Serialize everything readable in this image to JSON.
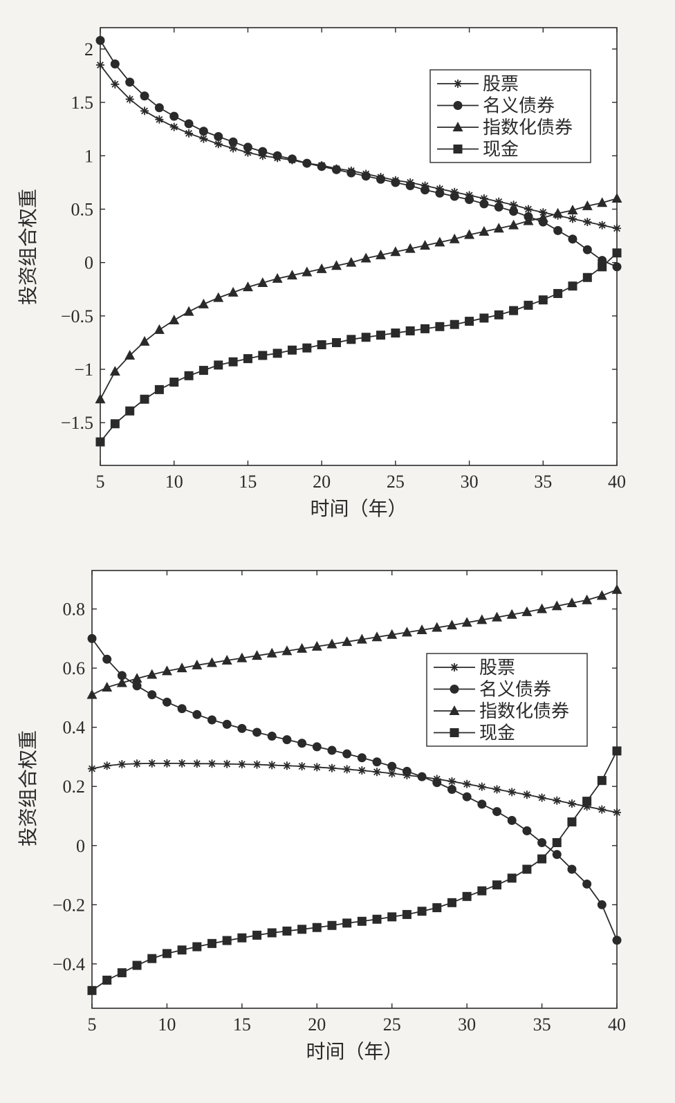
{
  "colors": {
    "ink": "#2a2a2a",
    "background": "#f4f3ef",
    "panel": "#ffffff"
  },
  "chart_data": [
    {
      "type": "line",
      "xlabel": "时间（年）",
      "ylabel": "投资组合权重",
      "xlim": [
        5,
        40
      ],
      "ylim": [
        -1.9,
        2.2
      ],
      "xticks": [
        5,
        10,
        15,
        20,
        25,
        30,
        35,
        40
      ],
      "xtick_labels": [
        "5",
        "10",
        "15",
        "20",
        "25",
        "30",
        "35",
        "40"
      ],
      "yticks": [
        -1.5,
        -1,
        -0.5,
        0,
        0.5,
        1,
        1.5,
        2
      ],
      "ytick_labels": [
        "−1.5",
        "−1",
        "−0.5",
        "0",
        "0.5",
        "1",
        "1.5",
        "2"
      ],
      "legend_position": "top-right",
      "x": [
        5,
        6,
        7,
        8,
        9,
        10,
        11,
        12,
        13,
        14,
        15,
        16,
        17,
        18,
        19,
        20,
        21,
        22,
        23,
        24,
        25,
        26,
        27,
        28,
        29,
        30,
        31,
        32,
        33,
        34,
        35,
        36,
        37,
        38,
        39,
        40
      ],
      "series": [
        {
          "name": "股票",
          "marker": "star",
          "values": [
            1.85,
            1.67,
            1.53,
            1.42,
            1.34,
            1.27,
            1.21,
            1.16,
            1.11,
            1.07,
            1.03,
            1.0,
            0.98,
            0.96,
            0.93,
            0.91,
            0.88,
            0.86,
            0.83,
            0.8,
            0.77,
            0.75,
            0.72,
            0.69,
            0.66,
            0.63,
            0.6,
            0.57,
            0.54,
            0.5,
            0.47,
            0.44,
            0.41,
            0.38,
            0.35,
            0.32
          ]
        },
        {
          "name": "名义债券",
          "marker": "circle",
          "values": [
            2.08,
            1.86,
            1.69,
            1.56,
            1.45,
            1.37,
            1.3,
            1.23,
            1.18,
            1.13,
            1.08,
            1.04,
            1.0,
            0.97,
            0.93,
            0.9,
            0.87,
            0.84,
            0.81,
            0.78,
            0.75,
            0.72,
            0.68,
            0.65,
            0.62,
            0.59,
            0.55,
            0.52,
            0.48,
            0.43,
            0.38,
            0.3,
            0.22,
            0.12,
            0.02,
            -0.04
          ]
        },
        {
          "name": "指数化债券",
          "marker": "triangle",
          "values": [
            -1.28,
            -1.02,
            -0.87,
            -0.74,
            -0.63,
            -0.54,
            -0.46,
            -0.39,
            -0.33,
            -0.28,
            -0.23,
            -0.19,
            -0.15,
            -0.12,
            -0.09,
            -0.06,
            -0.03,
            0.0,
            0.04,
            0.07,
            0.1,
            0.13,
            0.16,
            0.19,
            0.22,
            0.26,
            0.29,
            0.32,
            0.35,
            0.39,
            0.42,
            0.46,
            0.49,
            0.53,
            0.56,
            0.6
          ]
        },
        {
          "name": "现金",
          "marker": "square",
          "values": [
            -1.68,
            -1.51,
            -1.39,
            -1.28,
            -1.19,
            -1.12,
            -1.06,
            -1.01,
            -0.96,
            -0.93,
            -0.9,
            -0.87,
            -0.85,
            -0.82,
            -0.8,
            -0.77,
            -0.75,
            -0.72,
            -0.7,
            -0.68,
            -0.66,
            -0.64,
            -0.62,
            -0.6,
            -0.58,
            -0.55,
            -0.52,
            -0.49,
            -0.45,
            -0.4,
            -0.35,
            -0.29,
            -0.22,
            -0.14,
            -0.04,
            0.09
          ]
        }
      ]
    },
    {
      "type": "line",
      "xlabel": "时间（年）",
      "ylabel": "投资组合权重",
      "xlim": [
        5,
        40
      ],
      "ylim": [
        -0.55,
        0.93
      ],
      "xticks": [
        5,
        10,
        15,
        20,
        25,
        30,
        35,
        40
      ],
      "xtick_labels": [
        "5",
        "10",
        "15",
        "20",
        "25",
        "30",
        "35",
        "40"
      ],
      "yticks": [
        -0.4,
        -0.2,
        0,
        0.2,
        0.4,
        0.6,
        0.8
      ],
      "ytick_labels": [
        "−0.4",
        "−0.2",
        "0",
        "0.2",
        "0.4",
        "0.6",
        "0.8"
      ],
      "legend_position": "center-right",
      "x": [
        5,
        6,
        7,
        8,
        9,
        10,
        11,
        12,
        13,
        14,
        15,
        16,
        17,
        18,
        19,
        20,
        21,
        22,
        23,
        24,
        25,
        26,
        27,
        28,
        29,
        30,
        31,
        32,
        33,
        34,
        35,
        36,
        37,
        38,
        39,
        40
      ],
      "series": [
        {
          "name": "股票",
          "marker": "star",
          "values": [
            0.26,
            0.27,
            0.275,
            0.277,
            0.278,
            0.278,
            0.278,
            0.277,
            0.277,
            0.276,
            0.275,
            0.274,
            0.272,
            0.27,
            0.268,
            0.265,
            0.262,
            0.258,
            0.254,
            0.249,
            0.244,
            0.238,
            0.232,
            0.225,
            0.217,
            0.208,
            0.199,
            0.19,
            0.181,
            0.172,
            0.162,
            0.152,
            0.142,
            0.132,
            0.122,
            0.112
          ]
        },
        {
          "name": "名义债券",
          "marker": "circle",
          "values": [
            0.7,
            0.63,
            0.575,
            0.54,
            0.51,
            0.485,
            0.463,
            0.443,
            0.425,
            0.41,
            0.396,
            0.383,
            0.37,
            0.358,
            0.346,
            0.334,
            0.322,
            0.31,
            0.297,
            0.283,
            0.268,
            0.251,
            0.233,
            0.213,
            0.19,
            0.165,
            0.14,
            0.115,
            0.085,
            0.05,
            0.01,
            -0.03,
            -0.08,
            -0.13,
            -0.2,
            -0.32
          ]
        },
        {
          "name": "指数化债券",
          "marker": "triangle",
          "values": [
            0.51,
            0.535,
            0.55,
            0.565,
            0.578,
            0.59,
            0.6,
            0.61,
            0.618,
            0.626,
            0.634,
            0.642,
            0.65,
            0.658,
            0.666,
            0.673,
            0.681,
            0.689,
            0.697,
            0.705,
            0.713,
            0.721,
            0.729,
            0.737,
            0.745,
            0.754,
            0.763,
            0.772,
            0.781,
            0.79,
            0.8,
            0.81,
            0.82,
            0.83,
            0.845,
            0.865
          ]
        },
        {
          "name": "现金",
          "marker": "square",
          "values": [
            -0.49,
            -0.455,
            -0.43,
            -0.405,
            -0.382,
            -0.365,
            -0.353,
            -0.342,
            -0.331,
            -0.321,
            -0.312,
            -0.303,
            -0.295,
            -0.289,
            -0.283,
            -0.277,
            -0.27,
            -0.262,
            -0.256,
            -0.249,
            -0.241,
            -0.233,
            -0.222,
            -0.21,
            -0.193,
            -0.172,
            -0.153,
            -0.133,
            -0.11,
            -0.08,
            -0.045,
            0.01,
            0.08,
            0.15,
            0.22,
            0.32
          ]
        }
      ]
    }
  ]
}
